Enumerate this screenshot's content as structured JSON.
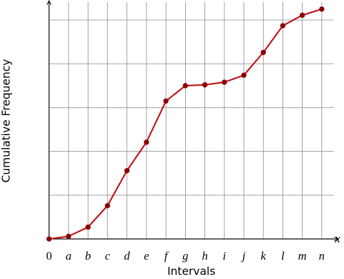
{
  "chart_data": {
    "type": "line",
    "x_label": "Intervals",
    "y_label": "Cumulative Frequency",
    "x_axis_symbol": "x",
    "categories": [
      "0",
      "a",
      "b",
      "c",
      "d",
      "e",
      "f",
      "g",
      "h",
      "i",
      "j",
      "k",
      "l",
      "m",
      "n"
    ],
    "values": [
      0,
      0.06,
      0.27,
      0.76,
      1.56,
      2.21,
      3.15,
      3.5,
      3.52,
      3.58,
      3.74,
      4.26,
      4.87,
      5.11,
      5.25
    ],
    "color": "#c0141a",
    "marker_color": "#8b0000",
    "ylim": [
      0,
      5.41
    ],
    "yticks": [
      0,
      1,
      2,
      3,
      4,
      5
    ],
    "grid": true
  }
}
